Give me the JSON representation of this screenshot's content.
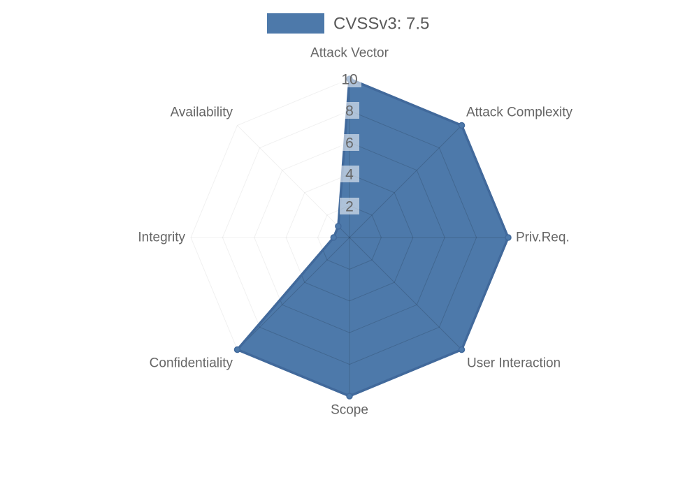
{
  "legend": {
    "label": "CVSSv3: 7.5",
    "swatch_color": "#4d79aa"
  },
  "chart_data": {
    "type": "radar",
    "categories": [
      "Attack Vector",
      "Attack Complexity",
      "Priv.Req.",
      "User Interaction",
      "Scope",
      "Confidentiality",
      "Integrity",
      "Availability"
    ],
    "series": [
      {
        "name": "CVSSv3: 7.5",
        "values": [
          10,
          10,
          10,
          10,
          10,
          10,
          1,
          1
        ]
      }
    ],
    "ticks": [
      2,
      4,
      6,
      8,
      10
    ],
    "rlim": [
      0,
      10
    ],
    "grid_shape": "polygon",
    "grid_on": true,
    "start_axis": "top",
    "direction": "clockwise",
    "legend_position": "top-center",
    "colors": {
      "fill": "#4d79aa",
      "stroke": "#41699b",
      "grid_outside": "rgba(0,0,0,0.06)",
      "grid_inside": "rgba(0,0,0,0.15)",
      "label": "#666666",
      "tick_text": "#666666",
      "tick_backdrop": "rgba(255,255,255,0.55)"
    }
  }
}
